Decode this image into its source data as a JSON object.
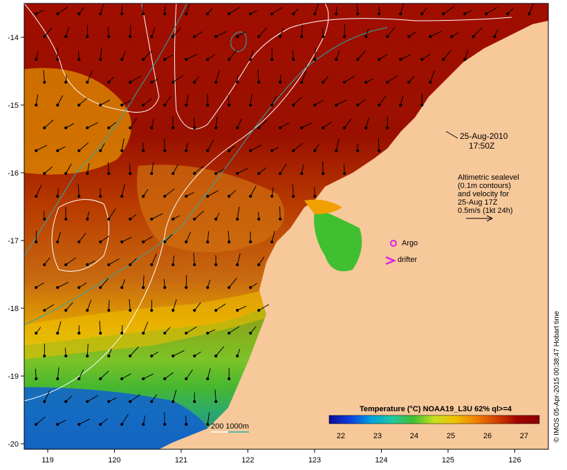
{
  "map": {
    "timestamp_date": "25-Aug-2010",
    "timestamp_time": "17:50Z",
    "altimetry_note": [
      "Altimetric sealevel",
      "(0.1m contours)",
      "and velocity for",
      "25-Aug 17Z",
      "0.5m/s (1kt 24h)"
    ],
    "legend_argo": "Argo",
    "legend_drifter": "drifter",
    "bathymetry_label": "200  1000m",
    "colorbar_title": "Temperature (°C) NOAA19_L3U 62% ql>=4",
    "colorbar_ticks": [
      "22",
      "23",
      "24",
      "25",
      "26",
      "27"
    ],
    "colorbar_colors": [
      "#0a0a96",
      "#1040e0",
      "#00a0e0",
      "#20c8a0",
      "#40c030",
      "#c8e020",
      "#f0c000",
      "#f08000",
      "#d04000",
      "#a00000",
      "#8b0000"
    ],
    "credit": "© IMOS 05-Apr-2015 00:38:47 Hobart time",
    "lon_ticks": [
      "119",
      "120",
      "121",
      "122",
      "123",
      "124",
      "125",
      "126"
    ],
    "lat_ticks": [
      "-14",
      "-15",
      "-16",
      "-17",
      "-18",
      "-19",
      "-20"
    ],
    "colors": {
      "land": "#f7c89a",
      "warm_sea": "#a50f00",
      "contour_sealevel": "#ffffff",
      "contour_bathymetry": "#20b0b0",
      "argo_marker": "#e020e0",
      "drifter_marker": "#e020e0"
    }
  }
}
